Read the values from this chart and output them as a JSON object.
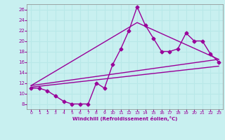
{
  "xlabel": "Windchill (Refroidissement éolien,°C)",
  "background_color": "#c8f0f0",
  "line_color": "#990099",
  "grid_color": "#b8e8e8",
  "xlim": [
    -0.5,
    23.5
  ],
  "ylim": [
    7,
    27
  ],
  "xticks": [
    0,
    1,
    2,
    3,
    4,
    5,
    6,
    7,
    8,
    9,
    10,
    11,
    12,
    13,
    14,
    15,
    16,
    17,
    18,
    19,
    20,
    21,
    22,
    23
  ],
  "yticks": [
    8,
    10,
    12,
    14,
    16,
    18,
    20,
    22,
    24,
    26
  ],
  "line1_x": [
    0,
    1,
    2,
    3,
    4,
    5,
    6,
    7,
    8,
    9,
    10,
    11,
    12,
    13,
    14,
    15,
    16,
    17,
    18,
    19,
    20,
    21,
    22,
    23
  ],
  "line1_y": [
    11,
    11,
    10.5,
    9.5,
    8.5,
    8,
    8,
    8,
    12,
    11,
    15.5,
    18.5,
    22,
    26.5,
    23,
    20.5,
    18,
    18,
    18.5,
    21.5,
    20,
    20,
    17.5,
    16
  ],
  "line2_x": [
    0,
    23
  ],
  "line2_y": [
    11.5,
    16.5
  ],
  "line3_x": [
    0,
    23
  ],
  "line3_y": [
    11.2,
    15.2
  ],
  "line4_x": [
    0,
    13,
    23
  ],
  "line4_y": [
    11.5,
    23.5,
    16.5
  ]
}
